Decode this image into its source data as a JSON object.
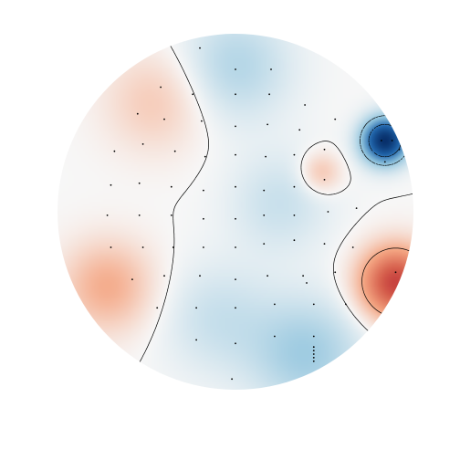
{
  "chart_data": {
    "type": "heatmap",
    "subtype": "topographic-scalp-map",
    "title": "",
    "xlabel": "",
    "ylabel": "",
    "grid": false,
    "legend": "none",
    "colormap": [
      "#08306b",
      "#2166ac",
      "#92c5de",
      "#f7f7f7",
      "#f4a582",
      "#d6604d",
      "#b2182b"
    ],
    "value_range": [
      -1,
      1
    ],
    "sources": [
      {
        "name": "blue-peak-right",
        "x": 0.84,
        "y": 0.4,
        "value": -1.0,
        "spread": 0.09
      },
      {
        "name": "red-peak-lower-right",
        "x": 0.9,
        "y": -0.4,
        "value": 0.8,
        "spread": 0.14
      },
      {
        "name": "red-lower-left",
        "x": -0.72,
        "y": -0.42,
        "value": 0.3,
        "spread": 0.18
      },
      {
        "name": "red-upper-left",
        "x": -0.45,
        "y": 0.62,
        "value": 0.18,
        "spread": 0.2
      },
      {
        "name": "red-small-right",
        "x": 0.48,
        "y": 0.22,
        "value": 0.22,
        "spread": 0.08
      },
      {
        "name": "blue-top",
        "x": 0.0,
        "y": 0.82,
        "value": -0.22,
        "spread": 0.22
      },
      {
        "name": "blue-bottom",
        "x": 0.4,
        "y": -0.8,
        "value": -0.28,
        "spread": 0.22
      },
      {
        "name": "blue-center",
        "x": 0.25,
        "y": 0.05,
        "value": -0.15,
        "spread": 0.2
      },
      {
        "name": "blue-center-left",
        "x": -0.1,
        "y": -0.6,
        "value": -0.15,
        "spread": 0.22
      }
    ],
    "sensors": [
      [
        -0.2,
        0.92
      ],
      [
        0.0,
        0.8
      ],
      [
        0.2,
        0.8
      ],
      [
        -0.42,
        0.7
      ],
      [
        -0.24,
        0.66
      ],
      [
        0.0,
        0.66
      ],
      [
        0.19,
        0.66
      ],
      [
        0.39,
        0.6
      ],
      [
        -0.55,
        0.55
      ],
      [
        -0.4,
        0.52
      ],
      [
        -0.19,
        0.51
      ],
      [
        0.0,
        0.48
      ],
      [
        0.18,
        0.49
      ],
      [
        0.36,
        0.46
      ],
      [
        0.56,
        0.52
      ],
      [
        -0.68,
        0.34
      ],
      [
        -0.52,
        0.38
      ],
      [
        -0.34,
        0.34
      ],
      [
        -0.17,
        0.31
      ],
      [
        0.0,
        0.32
      ],
      [
        0.17,
        0.31
      ],
      [
        0.33,
        0.32
      ],
      [
        0.5,
        0.35
      ],
      [
        -0.7,
        0.15
      ],
      [
        -0.54,
        0.16
      ],
      [
        -0.36,
        0.14
      ],
      [
        -0.18,
        0.12
      ],
      [
        0.0,
        0.14
      ],
      [
        0.16,
        0.12
      ],
      [
        0.33,
        0.14
      ],
      [
        0.5,
        0.18
      ],
      [
        -0.72,
        -0.02
      ],
      [
        -0.54,
        -0.02
      ],
      [
        -0.36,
        -0.02
      ],
      [
        -0.18,
        -0.04
      ],
      [
        0.0,
        -0.04
      ],
      [
        0.16,
        -0.02
      ],
      [
        0.33,
        -0.02
      ],
      [
        0.52,
        0.0
      ],
      [
        0.68,
        0.02
      ],
      [
        -0.7,
        -0.2
      ],
      [
        -0.52,
        -0.2
      ],
      [
        -0.35,
        -0.2
      ],
      [
        -0.18,
        -0.2
      ],
      [
        0.0,
        -0.2
      ],
      [
        0.16,
        -0.18
      ],
      [
        0.33,
        -0.16
      ],
      [
        0.5,
        -0.18
      ],
      [
        0.66,
        -0.2
      ],
      [
        -0.58,
        -0.38
      ],
      [
        -0.4,
        -0.36
      ],
      [
        -0.2,
        -0.36
      ],
      [
        0.0,
        -0.38
      ],
      [
        0.18,
        -0.36
      ],
      [
        0.38,
        -0.36
      ],
      [
        0.56,
        -0.34
      ],
      [
        -0.44,
        -0.54
      ],
      [
        -0.22,
        -0.54
      ],
      [
        0.0,
        -0.54
      ],
      [
        0.22,
        -0.52
      ],
      [
        0.44,
        -0.52
      ],
      [
        0.62,
        -0.52
      ],
      [
        -0.22,
        -0.72
      ],
      [
        0.0,
        -0.74
      ],
      [
        0.22,
        -0.7
      ],
      [
        0.44,
        -0.7
      ],
      [
        -0.02,
        -0.94
      ],
      [
        0.44,
        -0.76
      ],
      [
        0.44,
        -0.78
      ],
      [
        0.44,
        -0.8
      ],
      [
        0.44,
        -0.82
      ],
      [
        0.44,
        -0.84
      ],
      [
        0.82,
        0.4
      ],
      [
        0.88,
        0.4
      ],
      [
        0.92,
        0.35
      ],
      [
        0.84,
        0.28
      ],
      [
        0.9,
        -0.34
      ],
      [
        0.4,
        -0.4
      ]
    ],
    "contour_levels": [
      -0.6,
      -0.3,
      0.0,
      0.3
    ]
  }
}
